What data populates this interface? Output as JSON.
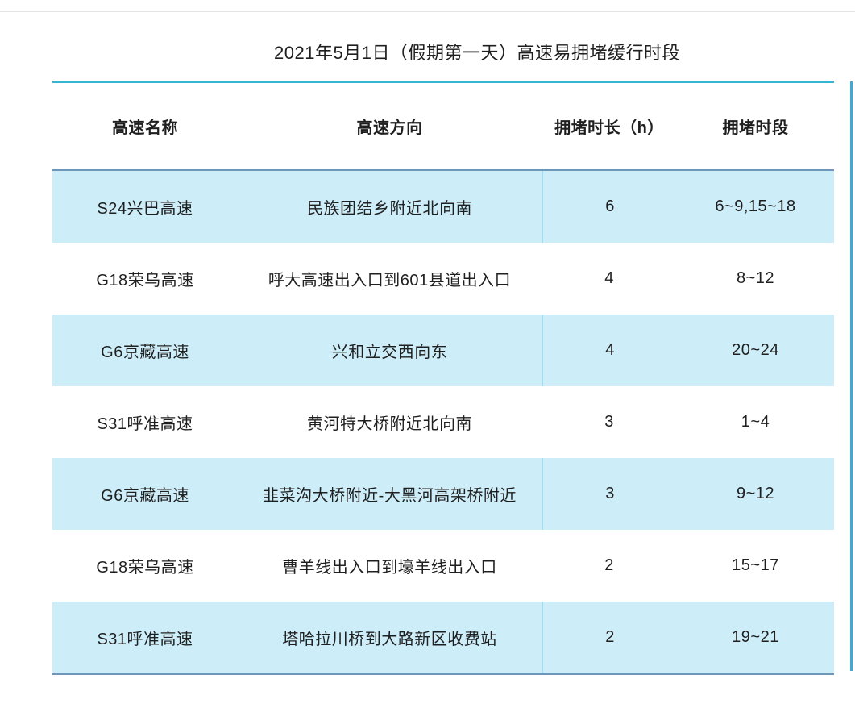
{
  "title": "2021年5月1日（假期第一天）高速易拥堵缓行时段",
  "table": {
    "columns": [
      "高速名称",
      "高速方向",
      "拥堵时长（h）",
      "拥堵时段"
    ],
    "rows": [
      {
        "name": "S24兴巴高速",
        "direction": "民族团结乡附近北向南",
        "duration": "6",
        "period": "6~9,15~18"
      },
      {
        "name": "G18荣乌高速",
        "direction": "呼大高速出入口到601县道出入口",
        "duration": "4",
        "period": "8~12"
      },
      {
        "name": "G6京藏高速",
        "direction": "兴和立交西向东",
        "duration": "4",
        "period": "20~24"
      },
      {
        "name": "S31呼准高速",
        "direction": "黄河特大桥附近北向南",
        "duration": "3",
        "period": "1~4"
      },
      {
        "name": "G6京藏高速",
        "direction": "韭菜沟大桥附近-大黑河高架桥附近",
        "duration": "3",
        "period": "9~12"
      },
      {
        "name": "G18荣乌高速",
        "direction": "曹羊线出入口到壕羊线出入口",
        "duration": "2",
        "period": "15~17"
      },
      {
        "name": "S31呼准高速",
        "direction": "塔哈拉川桥到大路新区收费站",
        "duration": "2",
        "period": "19~21"
      }
    ],
    "highlighted_row_indices": [
      0,
      2,
      4,
      6
    ]
  },
  "colors": {
    "row_highlight": "#cdedf8",
    "row_divider": "#a5daec",
    "title_rule": "#36b6d2",
    "header_rule": "#6e96b9",
    "right_accent": "#3fa9d7",
    "top_rule": "#e3e3e3",
    "text": "#1f1f1f"
  },
  "chart_data": {
    "type": "table",
    "title": "2021年5月1日（假期第一天）高速易拥堵缓行时段",
    "columns": [
      "高速名称",
      "高速方向",
      "拥堵时长（h）",
      "拥堵时段"
    ],
    "rows": [
      [
        "S24兴巴高速",
        "民族团结乡附近北向南",
        6,
        "6~9,15~18"
      ],
      [
        "G18荣乌高速",
        "呼大高速出入口到601县道出入口",
        4,
        "8~12"
      ],
      [
        "G6京藏高速",
        "兴和立交西向东",
        4,
        "20~24"
      ],
      [
        "S31呼准高速",
        "黄河特大桥附近北向南",
        3,
        "1~4"
      ],
      [
        "G6京藏高速",
        "韭菜沟大桥附近-大黑河高架桥附近",
        3,
        "9~12"
      ],
      [
        "G18荣乌高速",
        "曹羊线出入口到壕羊线出入口",
        2,
        "15~17"
      ],
      [
        "S31呼准高速",
        "塔哈拉川桥到大路新区收费站",
        2,
        "19~21"
      ]
    ]
  }
}
